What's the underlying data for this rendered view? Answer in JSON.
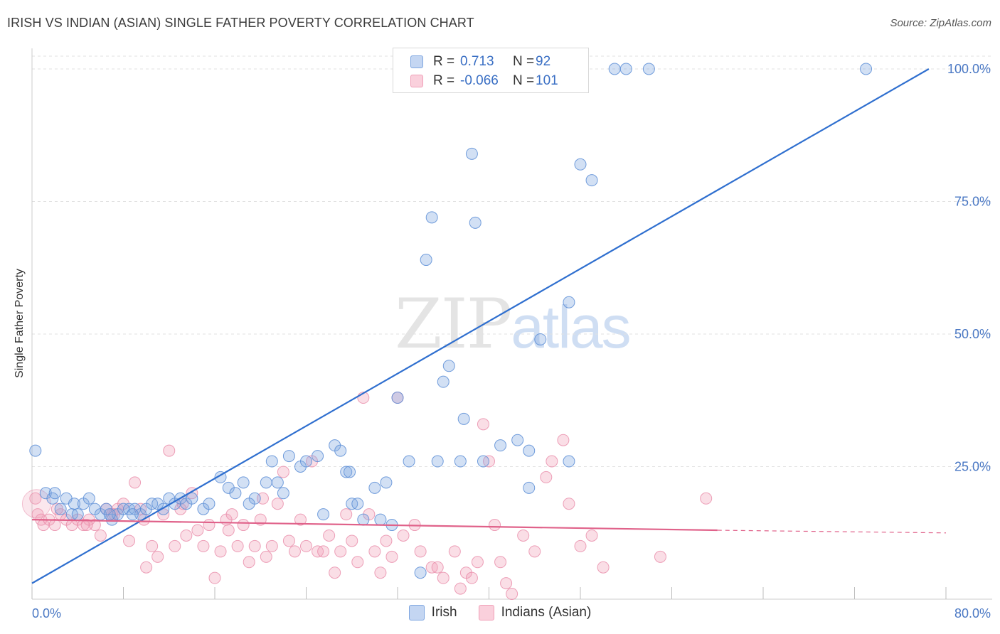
{
  "header": {
    "title": "IRISH VS INDIAN (ASIAN) SINGLE FATHER POVERTY CORRELATION CHART",
    "source": "Source: ZipAtlas.com"
  },
  "watermark": {
    "zip": "ZIP",
    "atlas": "atlas"
  },
  "legend": {
    "rows": [
      {
        "r_label": "R =",
        "r_value": "0.713",
        "n_label": "N =",
        "n_value": "92",
        "color": "#7ea6e0"
      },
      {
        "r_label": "R =",
        "r_value": "-0.066",
        "n_label": "N =",
        "n_value": "101",
        "color": "#f0a0b8"
      }
    ]
  },
  "bottom_legend": {
    "irish": "Irish",
    "indians": "Indians (Asian)"
  },
  "chart_data": {
    "type": "scatter",
    "ylabel": "Single Father Poverty",
    "xlim": [
      0,
      80
    ],
    "ylim": [
      0,
      100
    ],
    "x_tick_labels": [
      "0.0%",
      "80.0%"
    ],
    "y_tick_labels": [
      "25.0%",
      "50.0%",
      "75.0%",
      "100.0%"
    ],
    "y_ticks": [
      25,
      50,
      75,
      100
    ],
    "grid": "horizontal dashed",
    "colors": {
      "irish": "#7ea6e0",
      "irish_line": "#2f6fcf",
      "indians": "#f0a0b8",
      "indians_line": "#e0628a"
    },
    "series": [
      {
        "name": "Irish",
        "trend": {
          "x": [
            0,
            78.5
          ],
          "y": [
            3,
            100
          ]
        },
        "points": [
          [
            0.3,
            28
          ],
          [
            1.2,
            20
          ],
          [
            1.8,
            19
          ],
          [
            2.5,
            17
          ],
          [
            3.0,
            19
          ],
          [
            3.5,
            16
          ],
          [
            3.7,
            18
          ],
          [
            4.0,
            16
          ],
          [
            4.5,
            18
          ],
          [
            5.0,
            19
          ],
          [
            5.5,
            17
          ],
          [
            6.0,
            16
          ],
          [
            6.5,
            17
          ],
          [
            7.0,
            15
          ],
          [
            7.5,
            16
          ],
          [
            8.0,
            17
          ],
          [
            8.5,
            17
          ],
          [
            9.0,
            17
          ],
          [
            9.5,
            16
          ],
          [
            10.0,
            17
          ],
          [
            10.5,
            18
          ],
          [
            11.0,
            18
          ],
          [
            12.0,
            19
          ],
          [
            12.5,
            18
          ],
          [
            13.0,
            19
          ],
          [
            13.5,
            18
          ],
          [
            14.0,
            19
          ],
          [
            16.5,
            23
          ],
          [
            17.2,
            21
          ],
          [
            17.8,
            20
          ],
          [
            18.5,
            22
          ],
          [
            19.5,
            19
          ],
          [
            20.5,
            22
          ],
          [
            21.0,
            26
          ],
          [
            22.5,
            27
          ],
          [
            23.5,
            25
          ],
          [
            24.0,
            26
          ],
          [
            25.0,
            27
          ],
          [
            26.5,
            29
          ],
          [
            27.0,
            28
          ],
          [
            27.5,
            24
          ],
          [
            28.0,
            18
          ],
          [
            28.5,
            18
          ],
          [
            29.0,
            15
          ],
          [
            30.0,
            21
          ],
          [
            31.0,
            22
          ],
          [
            31.5,
            14
          ],
          [
            32.0,
            38
          ],
          [
            33.0,
            26
          ],
          [
            34.0,
            5
          ],
          [
            34.5,
            64
          ],
          [
            35.0,
            72
          ],
          [
            35.5,
            26
          ],
          [
            36.0,
            41
          ],
          [
            36.5,
            44
          ],
          [
            37.5,
            26
          ],
          [
            37.8,
            34
          ],
          [
            38.5,
            84
          ],
          [
            38.8,
            71
          ],
          [
            39.5,
            26
          ],
          [
            41.0,
            29
          ],
          [
            42.5,
            30
          ],
          [
            43.5,
            28
          ],
          [
            43.5,
            21
          ],
          [
            44.5,
            49
          ],
          [
            47.0,
            56
          ],
          [
            47.0,
            26
          ],
          [
            48.0,
            82
          ],
          [
            49.0,
            79
          ],
          [
            51.0,
            100
          ],
          [
            54.0,
            100
          ],
          [
            73.0,
            100
          ],
          [
            38.0,
            100
          ],
          [
            43.0,
            100
          ],
          [
            45.0,
            100
          ],
          [
            47.0,
            100
          ],
          [
            52.0,
            100
          ],
          [
            40.0,
            100
          ],
          [
            42.0,
            100
          ],
          [
            36.5,
            100
          ],
          [
            2.0,
            20
          ],
          [
            6.8,
            16
          ],
          [
            8.8,
            16
          ],
          [
            11.5,
            17
          ],
          [
            15.0,
            17
          ],
          [
            15.5,
            18
          ],
          [
            19.0,
            18
          ],
          [
            21.5,
            22
          ],
          [
            25.5,
            16
          ],
          [
            27.8,
            24
          ],
          [
            22.0,
            20
          ],
          [
            30.5,
            15
          ]
        ]
      },
      {
        "name": "Indians (Asian)",
        "trend": {
          "x": [
            0,
            60
          ],
          "y": [
            15,
            13
          ]
        },
        "trend_dashed": {
          "x": [
            60,
            80
          ],
          "y": [
            13,
            12.5
          ]
        },
        "points": [
          [
            0.3,
            19
          ],
          [
            0.5,
            16
          ],
          [
            0.8,
            15
          ],
          [
            1.0,
            14
          ],
          [
            1.5,
            15
          ],
          [
            2.0,
            14
          ],
          [
            2.5,
            16
          ],
          [
            3.0,
            15
          ],
          [
            3.5,
            14
          ],
          [
            4.0,
            15
          ],
          [
            4.5,
            14
          ],
          [
            5.0,
            15
          ],
          [
            5.5,
            14
          ],
          [
            6.0,
            12
          ],
          [
            6.5,
            17
          ],
          [
            7.0,
            16
          ],
          [
            7.5,
            17
          ],
          [
            8.0,
            18
          ],
          [
            8.5,
            11
          ],
          [
            9.0,
            22
          ],
          [
            9.5,
            17
          ],
          [
            10.0,
            6
          ],
          [
            10.5,
            10
          ],
          [
            11.0,
            8
          ],
          [
            11.5,
            16
          ],
          [
            12.0,
            28
          ],
          [
            12.5,
            10
          ],
          [
            13.0,
            17
          ],
          [
            13.5,
            12
          ],
          [
            14.0,
            20
          ],
          [
            14.5,
            13
          ],
          [
            15.0,
            10
          ],
          [
            15.5,
            14
          ],
          [
            16.0,
            4
          ],
          [
            16.5,
            9
          ],
          [
            17.0,
            15
          ],
          [
            17.5,
            16
          ],
          [
            18.0,
            10
          ],
          [
            18.5,
            14
          ],
          [
            19.0,
            7
          ],
          [
            19.5,
            10
          ],
          [
            20.0,
            15
          ],
          [
            20.5,
            8
          ],
          [
            21.0,
            10
          ],
          [
            21.5,
            18
          ],
          [
            22.0,
            24
          ],
          [
            22.5,
            11
          ],
          [
            23.0,
            9
          ],
          [
            23.5,
            15
          ],
          [
            24.0,
            10
          ],
          [
            24.5,
            26
          ],
          [
            25.0,
            9
          ],
          [
            25.5,
            9
          ],
          [
            26.0,
            12
          ],
          [
            26.5,
            5
          ],
          [
            27.0,
            9
          ],
          [
            27.5,
            16
          ],
          [
            28.0,
            11
          ],
          [
            28.5,
            7
          ],
          [
            29.0,
            38
          ],
          [
            29.5,
            16
          ],
          [
            30.0,
            9
          ],
          [
            30.5,
            5
          ],
          [
            31.0,
            11
          ],
          [
            31.5,
            8
          ],
          [
            32.0,
            38
          ],
          [
            32.5,
            12
          ],
          [
            33.5,
            14
          ],
          [
            34.0,
            9
          ],
          [
            35.0,
            6
          ],
          [
            35.5,
            6
          ],
          [
            36.0,
            4
          ],
          [
            37.0,
            9
          ],
          [
            37.5,
            2
          ],
          [
            38.0,
            5
          ],
          [
            38.5,
            4
          ],
          [
            39.0,
            7
          ],
          [
            39.5,
            33
          ],
          [
            40.0,
            26
          ],
          [
            40.5,
            14
          ],
          [
            41.0,
            7
          ],
          [
            41.5,
            3
          ],
          [
            42.0,
            1
          ],
          [
            43.0,
            12
          ],
          [
            44.0,
            9
          ],
          [
            45.0,
            23
          ],
          [
            45.5,
            26
          ],
          [
            46.5,
            30
          ],
          [
            47.0,
            18
          ],
          [
            48.0,
            10
          ],
          [
            49.0,
            12
          ],
          [
            50.0,
            6
          ],
          [
            55.0,
            8
          ],
          [
            59.0,
            19
          ],
          [
            2.2,
            17
          ],
          [
            4.8,
            14
          ],
          [
            7.2,
            16
          ],
          [
            9.8,
            15
          ],
          [
            13.2,
            18
          ],
          [
            17.2,
            13
          ],
          [
            20.2,
            19
          ]
        ]
      }
    ]
  }
}
